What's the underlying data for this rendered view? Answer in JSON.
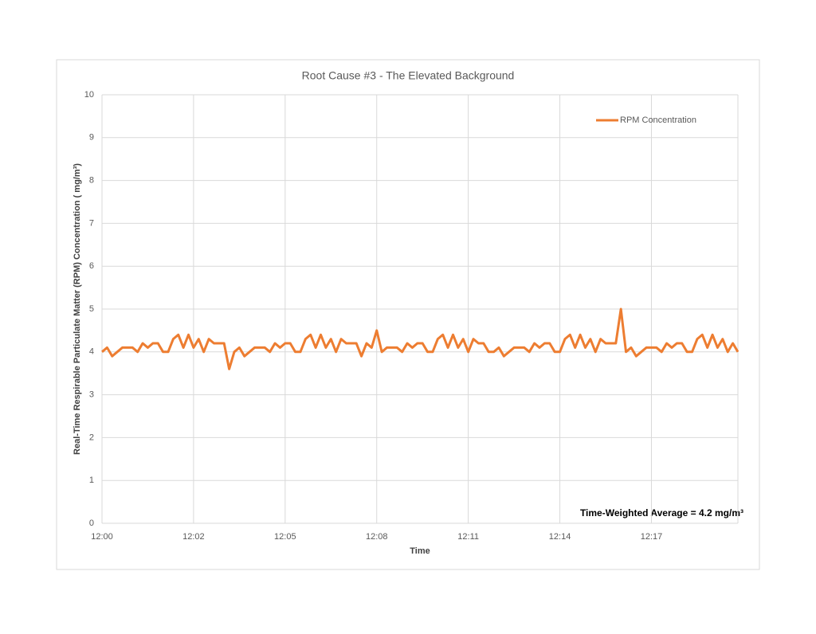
{
  "chart_data": {
    "type": "line",
    "title": "Root Cause #3 - The Elevated Background",
    "x_label": "Time",
    "y_label": "Real-Time Respirable Particulate Matter (RPM) Concentration ( mg/m³)",
    "annotation": "Time-Weighted Average = 4.2 mg/m³",
    "categories": [
      "12:00",
      null,
      null,
      null,
      null,
      null,
      null,
      null,
      null,
      null,
      null,
      null,
      null,
      null,
      null,
      null,
      null,
      null,
      "12:02",
      null,
      null,
      null,
      null,
      null,
      null,
      null,
      null,
      null,
      null,
      null,
      null,
      null,
      null,
      null,
      null,
      null,
      "12:05",
      null,
      null,
      null,
      null,
      null,
      null,
      null,
      null,
      null,
      null,
      null,
      null,
      null,
      null,
      null,
      null,
      null,
      "12:08",
      null,
      null,
      null,
      null,
      null,
      null,
      null,
      null,
      null,
      null,
      null,
      null,
      null,
      null,
      null,
      null,
      null,
      "12:11",
      null,
      null,
      null,
      null,
      null,
      null,
      null,
      null,
      null,
      null,
      null,
      null,
      null,
      null,
      null,
      null,
      null,
      "12:14",
      null,
      null,
      null,
      null,
      null,
      null,
      null,
      null,
      null,
      null,
      null,
      null,
      null,
      null,
      null,
      null,
      null,
      "12:17",
      null,
      null,
      null,
      null,
      null,
      null,
      null,
      null,
      null,
      null,
      null,
      null,
      null,
      null,
      null,
      null,
      null
    ],
    "series": [
      {
        "name": "RPM Concentration",
        "color": "#ed7d31",
        "values": [
          4.0,
          4.1,
          3.9,
          4.0,
          4.1,
          4.1,
          4.1,
          4.0,
          4.2,
          4.1,
          4.2,
          4.2,
          4.0,
          4.0,
          4.3,
          4.4,
          4.1,
          4.4,
          4.1,
          4.3,
          4.0,
          4.3,
          4.2,
          4.2,
          4.2,
          3.6,
          4.0,
          4.1,
          3.9,
          4.0,
          4.1,
          4.1,
          4.1,
          4.0,
          4.2,
          4.1,
          4.2,
          4.2,
          4.0,
          4.0,
          4.3,
          4.4,
          4.1,
          4.4,
          4.1,
          4.3,
          4.0,
          4.3,
          4.2,
          4.2,
          4.2,
          3.9,
          4.2,
          4.1,
          4.5,
          4.0,
          4.1,
          4.1,
          4.1,
          4.0,
          4.2,
          4.1,
          4.2,
          4.2,
          4.0,
          4.0,
          4.3,
          4.4,
          4.1,
          4.4,
          4.1,
          4.3,
          4.0,
          4.3,
          4.2,
          4.2,
          4.0,
          4.0,
          4.1,
          3.9,
          4.0,
          4.1,
          4.1,
          4.1,
          4.0,
          4.2,
          4.1,
          4.2,
          4.2,
          4.0,
          4.0,
          4.3,
          4.4,
          4.1,
          4.4,
          4.1,
          4.3,
          4.0,
          4.3,
          4.2,
          4.2,
          4.2,
          5.0,
          4.0,
          4.1,
          3.9,
          4.0,
          4.1,
          4.1,
          4.1,
          4.0,
          4.2,
          4.1,
          4.2,
          4.2,
          4.0,
          4.0,
          4.3,
          4.4,
          4.1,
          4.4,
          4.1,
          4.3,
          4.0,
          4.2,
          4.0
        ]
      }
    ],
    "ylim": [
      0,
      10
    ],
    "yticks": [
      0,
      1,
      2,
      3,
      4,
      5,
      6,
      7,
      8,
      9,
      10
    ],
    "grid": true,
    "legend": "upper-right"
  }
}
